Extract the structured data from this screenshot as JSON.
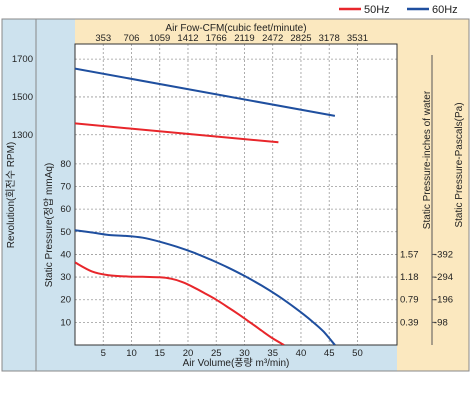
{
  "chart_data": {
    "type": "line",
    "legend": {
      "placement": "top-right",
      "entries": [
        {
          "name": "50Hz",
          "color": "#e8262b"
        },
        {
          "name": "60Hz",
          "color": "#1f4f9f"
        }
      ]
    },
    "top_axis": {
      "label": "Air Fow-CFM(cubic feet/minute)",
      "ticks": [
        "353",
        "706",
        "1059",
        "1412",
        "1766",
        "2119",
        "2472",
        "2825",
        "3178",
        "3531"
      ],
      "tick_positions_m3min": [
        10,
        20,
        30,
        40,
        50,
        60,
        70,
        80,
        90,
        100
      ]
    },
    "x_axis": {
      "label": "Air Volume(풍량 m³/min)",
      "ticks": [
        "5",
        "10",
        "15",
        "20",
        "25",
        "30",
        "35",
        "40",
        "45",
        "50"
      ],
      "tick_values": [
        5,
        10,
        15,
        20,
        25,
        30,
        35,
        40,
        45,
        50
      ],
      "range": [
        0,
        57
      ]
    },
    "rpm_axis": {
      "label": "Revolution(회전수 RPM)",
      "ticks": [
        "1700",
        "1500",
        "1300"
      ],
      "tick_values": [
        1700,
        1500,
        1300
      ],
      "range": [
        1230,
        1780
      ]
    },
    "pressure_axis": {
      "label": "Static Pressure(정압 mmAq)",
      "ticks": [
        "80",
        "70",
        "60",
        "50",
        "40",
        "30",
        "20",
        "10"
      ],
      "tick_values": [
        80,
        70,
        60,
        50,
        40,
        30,
        20,
        10
      ],
      "range": [
        0,
        87
      ]
    },
    "water_axis": {
      "label": "Static Pressure-inches of water",
      "ticks": [
        "1.57",
        "1.18",
        "0.79",
        "0.39"
      ],
      "tick_positions_mmaq": [
        40,
        30,
        20,
        10
      ]
    },
    "pascal_axis": {
      "label": "Static Pressure-Pascals(Pa)",
      "ticks": [
        "-392",
        "-294",
        "-196",
        "-98"
      ],
      "tick_positions_mmaq": [
        40,
        30,
        20,
        10
      ]
    },
    "grid": true,
    "series": [
      {
        "name": "50Hz",
        "kind": "rpm",
        "color": "#e8262b",
        "points": [
          [
            0,
            1360
          ],
          [
            36,
            1260
          ]
        ]
      },
      {
        "name": "60Hz",
        "kind": "rpm",
        "color": "#1f4f9f",
        "points": [
          [
            0,
            1650
          ],
          [
            46,
            1400
          ]
        ]
      },
      {
        "name": "50Hz",
        "kind": "pressure",
        "color": "#e8262b",
        "points": [
          [
            0,
            36.5
          ],
          [
            3,
            32.5
          ],
          [
            6,
            30.8
          ],
          [
            9,
            30.3
          ],
          [
            12,
            30.1
          ],
          [
            15,
            29.9
          ],
          [
            17,
            29.3
          ],
          [
            19,
            27.8
          ],
          [
            21,
            25.5
          ],
          [
            23,
            22.8
          ],
          [
            25,
            20
          ],
          [
            27,
            16.8
          ],
          [
            29,
            13.5
          ],
          [
            31,
            10
          ],
          [
            33,
            6.4
          ],
          [
            35,
            2.9
          ],
          [
            37,
            0
          ]
        ]
      },
      {
        "name": "60Hz",
        "kind": "pressure",
        "color": "#1f4f9f",
        "points": [
          [
            0,
            50.7
          ],
          [
            3,
            49.7
          ],
          [
            6,
            48.6
          ],
          [
            9,
            48.2
          ],
          [
            12,
            47.4
          ],
          [
            15,
            45.6
          ],
          [
            18,
            43.4
          ],
          [
            21,
            40.8
          ],
          [
            24,
            37.7
          ],
          [
            27,
            34.3
          ],
          [
            30,
            30.5
          ],
          [
            33,
            26.3
          ],
          [
            36,
            21.6
          ],
          [
            39,
            16.3
          ],
          [
            42,
            10.4
          ],
          [
            44,
            5.9
          ],
          [
            46,
            0
          ]
        ]
      }
    ]
  }
}
